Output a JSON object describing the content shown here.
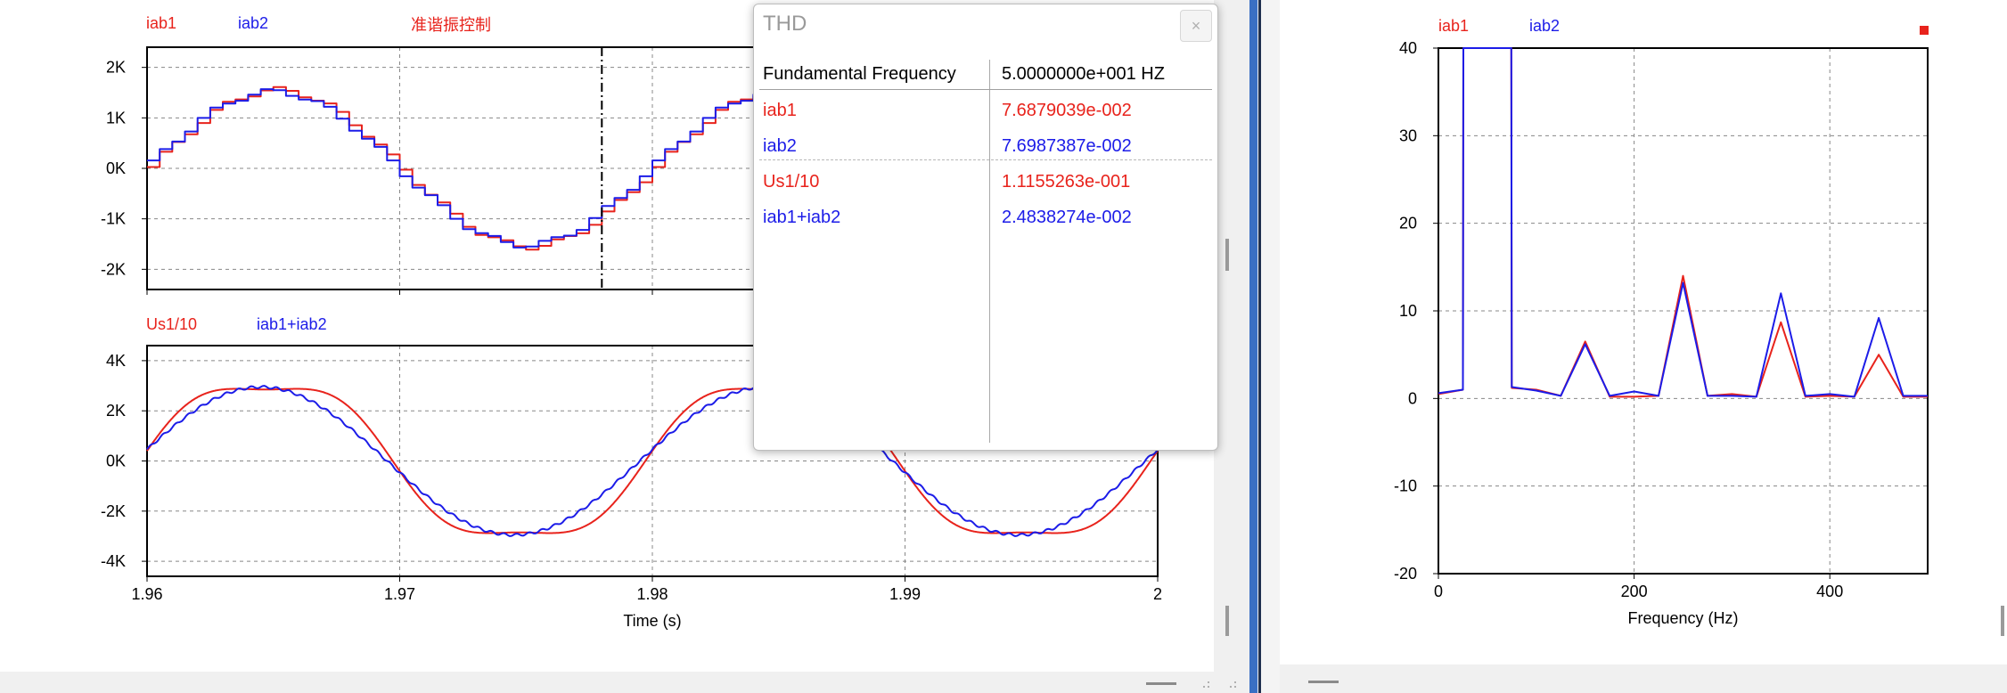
{
  "left_panel": {
    "top_chart": {
      "legend": [
        {
          "name": "iab1",
          "color": "#e8231c"
        },
        {
          "name": "iab2",
          "color": "#1c1ce8"
        }
      ],
      "title": "准谐振控制"
    },
    "bottom_chart": {
      "legend": [
        {
          "name": "Us1/10",
          "color": "#e8231c"
        },
        {
          "name": "iab1+iab2",
          "color": "#1c1ce8"
        }
      ]
    }
  },
  "thd_dialog": {
    "title": "THD",
    "close_label": "×",
    "header": {
      "label": "Fundamental Frequency",
      "value": "5.0000000e+001 HZ"
    },
    "rows": [
      {
        "label": "iab1",
        "value": "7.6879039e-002",
        "color": "#e8231c"
      },
      {
        "label": "iab2",
        "value": "7.6987387e-002",
        "color": "#1c1ce8"
      },
      {
        "label": "Us1/10",
        "value": "1.1155263e-001",
        "color": "#e8231c"
      },
      {
        "label": "iab1+iab2",
        "value": "2.4838274e-002",
        "color": "#1c1ce8"
      }
    ]
  },
  "chart_data": [
    {
      "type": "line",
      "legend_labels": [
        "iab1",
        "iab2"
      ],
      "title": "准谐振控制",
      "xlabel": "",
      "ylabel": "",
      "xlim": [
        1.96,
        2.0
      ],
      "ylim": [
        -2.4,
        2.4
      ],
      "yticks": [
        2,
        1,
        0,
        -1,
        -2
      ],
      "ytick_labels": [
        "2K",
        "1K",
        "0K",
        "-1K",
        "-2K"
      ],
      "grid": true,
      "cursor_x": 1.978,
      "series": [
        {
          "name": "iab1",
          "color": "#e8231c",
          "amplitude": 1.55,
          "phase_deg": 1,
          "step": 0.0005
        },
        {
          "name": "iab2",
          "color": "#1c1ce8",
          "amplitude": 1.52,
          "phase_deg": 4,
          "step": 0.0005
        }
      ],
      "frequency_hz": 50
    },
    {
      "type": "line",
      "legend_labels": [
        "Us1/10",
        "iab1+iab2"
      ],
      "xlabel": "Time (s)",
      "ylabel": "",
      "xlim": [
        1.96,
        2.0
      ],
      "ylim": [
        -4.6,
        4.6
      ],
      "yticks": [
        4,
        2,
        0,
        -2,
        -4
      ],
      "ytick_labels": [
        "4K",
        "2K",
        "0K",
        "-2K",
        "-4K"
      ],
      "xticks": [
        1.96,
        1.97,
        1.98,
        1.99,
        2.0
      ],
      "xtick_labels": [
        "1.96",
        "1.97",
        "1.98",
        "1.99",
        "2"
      ],
      "grid": true,
      "series": [
        {
          "name": "Us1/10",
          "color": "#e8231c",
          "fundamental_amplitude": 3.3,
          "third_harmonic_amplitude": 0.45,
          "phase_deg": 5
        },
        {
          "name": "iab1+iab2",
          "color": "#1c1ce8",
          "amplitude": 2.95,
          "phase_deg": 9
        }
      ],
      "frequency_hz": 50
    },
    {
      "type": "line",
      "legend_labels": [
        "iab1",
        "iab2"
      ],
      "xlabel": "Frequency (Hz)",
      "ylabel": "",
      "xlim": [
        0,
        500
      ],
      "ylim": [
        -20,
        40
      ],
      "xticks": [
        0,
        200,
        400
      ],
      "xtick_labels": [
        "0",
        "200",
        "400"
      ],
      "yticks": [
        40,
        30,
        20,
        10,
        0,
        -10,
        -20
      ],
      "ytick_labels": [
        "40",
        "30",
        "20",
        "10",
        "0",
        "-10",
        "-20"
      ],
      "grid": true,
      "x": [
        0,
        25,
        25.5,
        74.5,
        75,
        100,
        125,
        150,
        175,
        200,
        225,
        250,
        275,
        300,
        325,
        350,
        375,
        400,
        425,
        450,
        475,
        500
      ],
      "series": [
        {
          "name": "iab1",
          "color": "#e8231c",
          "values": [
            0.5,
            1.0,
            40,
            40,
            1.2,
            1.0,
            0.3,
            6.5,
            0.2,
            0.2,
            0.3,
            14.0,
            0.3,
            0.5,
            0.2,
            8.7,
            0.2,
            0.3,
            0.2,
            5.0,
            0.2,
            0.2
          ]
        },
        {
          "name": "iab2",
          "color": "#1c1ce8",
          "values": [
            0.6,
            1.0,
            40,
            40,
            1.3,
            0.9,
            0.3,
            6.2,
            0.3,
            0.8,
            0.3,
            13.2,
            0.3,
            0.3,
            0.2,
            12.0,
            0.3,
            0.5,
            0.2,
            9.2,
            0.3,
            0.3
          ]
        }
      ]
    }
  ]
}
